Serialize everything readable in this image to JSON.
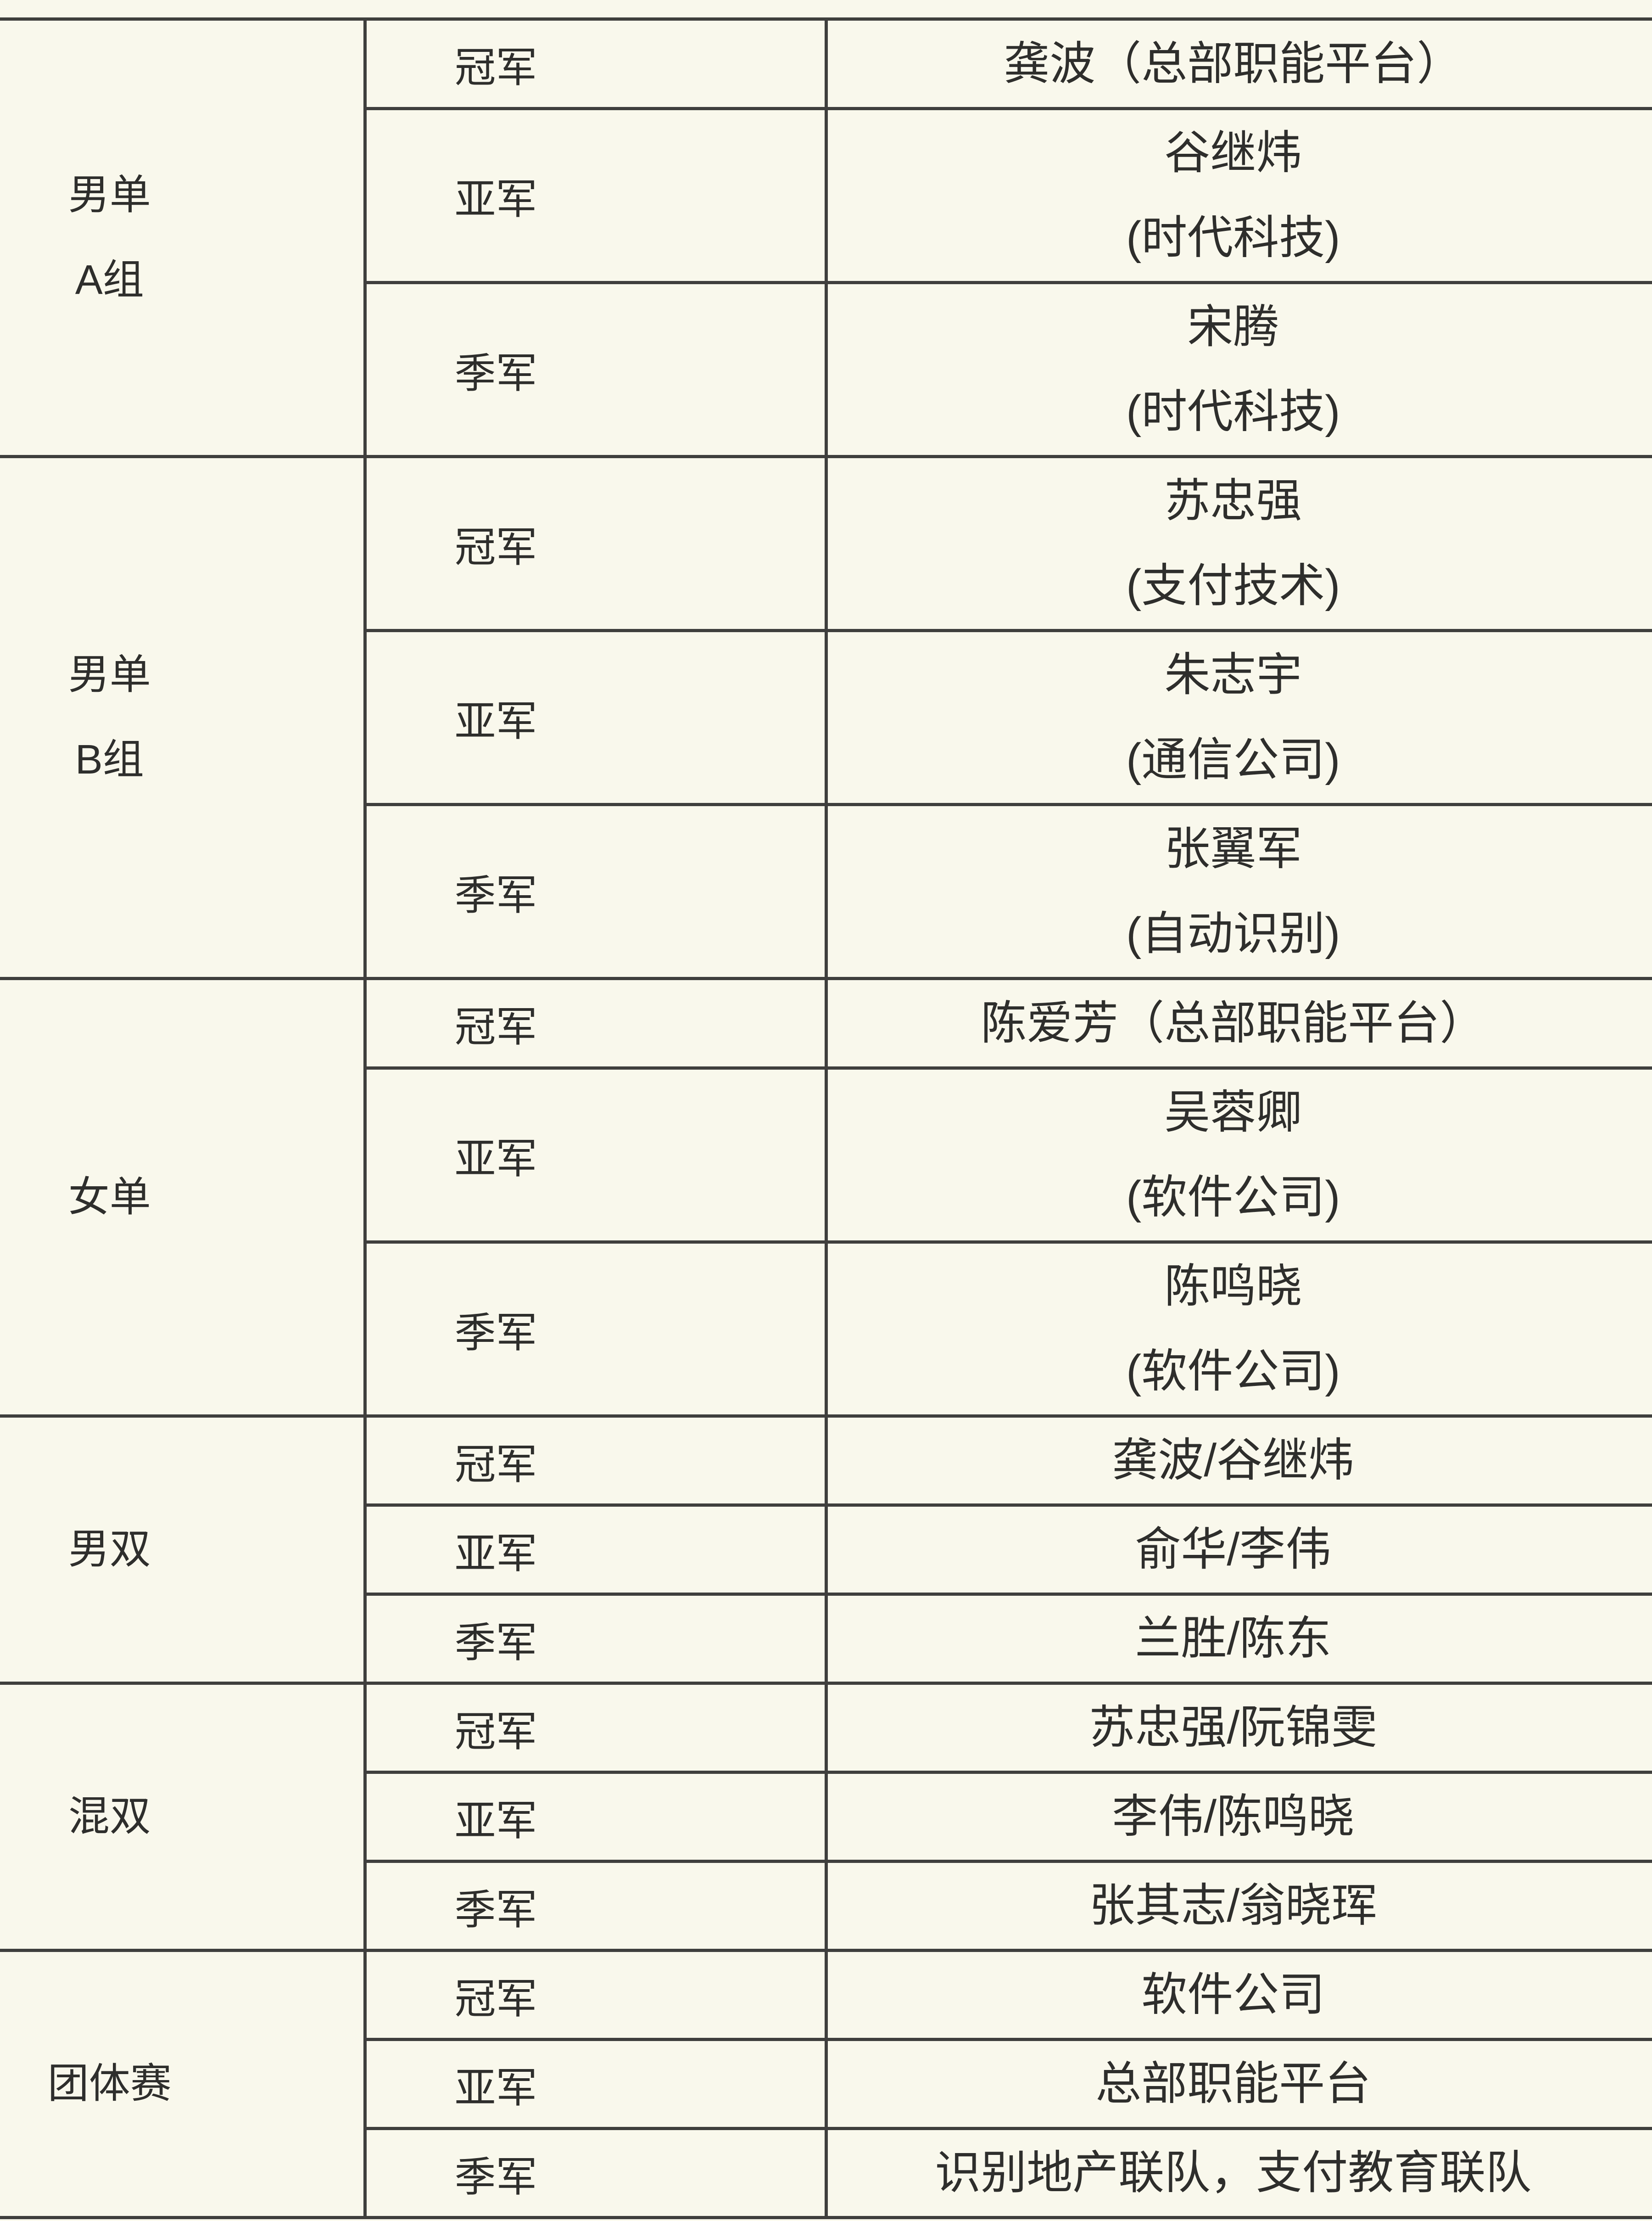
{
  "style": {
    "page_background": "#f9f8ec",
    "grid_line_color": "#3f3f3d",
    "text_color": "#2e2e2c"
  },
  "table": {
    "groups": [
      {
        "category_lines": [
          "男单",
          "A组"
        ],
        "rows": [
          {
            "rank": "冠军",
            "lines": [
              "龚波（总部职能平台）"
            ]
          },
          {
            "rank": "亚军",
            "lines": [
              "谷继炜",
              "(时代科技)"
            ]
          },
          {
            "rank": "季军",
            "lines": [
              "宋腾",
              "(时代科技)"
            ]
          }
        ]
      },
      {
        "category_lines": [
          "男单",
          "B组"
        ],
        "rows": [
          {
            "rank": "冠军",
            "lines": [
              "苏忠强",
              "(支付技术)"
            ]
          },
          {
            "rank": "亚军",
            "lines": [
              "朱志宇",
              "(通信公司)"
            ]
          },
          {
            "rank": "季军",
            "lines": [
              "张翼军",
              "(自动识别)"
            ]
          }
        ]
      },
      {
        "category_lines": [
          "女单"
        ],
        "rows": [
          {
            "rank": "冠军",
            "lines": [
              "陈爱芳（总部职能平台）"
            ]
          },
          {
            "rank": "亚军",
            "lines": [
              "吴蓉卿",
              "(软件公司)"
            ]
          },
          {
            "rank": "季军",
            "lines": [
              "陈鸣晓",
              "(软件公司)"
            ]
          }
        ]
      },
      {
        "category_lines": [
          "男双"
        ],
        "rows": [
          {
            "rank": "冠军",
            "lines": [
              "龚波/谷继炜"
            ]
          },
          {
            "rank": "亚军",
            "lines": [
              "俞华/李伟"
            ]
          },
          {
            "rank": "季军",
            "lines": [
              "兰胜/陈东"
            ]
          }
        ]
      },
      {
        "category_lines": [
          "混双"
        ],
        "rows": [
          {
            "rank": "冠军",
            "lines": [
              "苏忠强/阮锦雯"
            ]
          },
          {
            "rank": "亚军",
            "lines": [
              "李伟/陈鸣晓"
            ]
          },
          {
            "rank": "季军",
            "lines": [
              "张其志/翁晓珲"
            ]
          }
        ]
      },
      {
        "category_lines": [
          "团体赛"
        ],
        "rows": [
          {
            "rank": "冠军",
            "lines": [
              "软件公司"
            ]
          },
          {
            "rank": "亚军",
            "lines": [
              "总部职能平台"
            ]
          },
          {
            "rank": "季军",
            "lines": [
              "识别地产联队，支付教育联队"
            ]
          }
        ]
      }
    ]
  }
}
